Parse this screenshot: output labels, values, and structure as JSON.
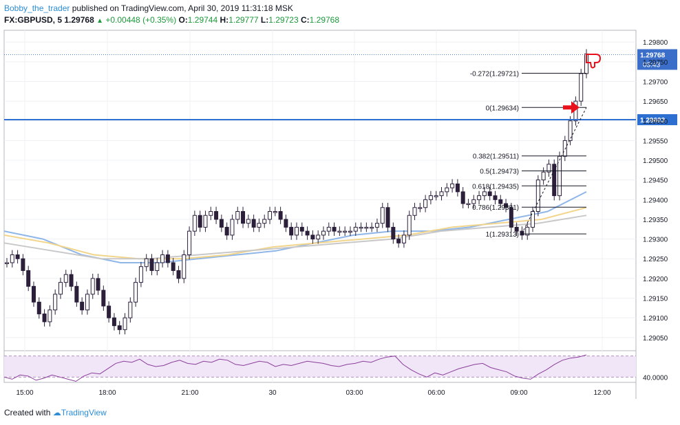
{
  "header": {
    "author": "Bobby_the_trader",
    "published": "published on TradingView.com, April 30, 2019 11:31:18 MSK",
    "symbol": "FX:GBPUSD, 5",
    "last": "1.29768",
    "change": "+0.00448 (+0.35%)",
    "o_label": "O:",
    "o": "1.29744",
    "h_label": "H:",
    "h": "1.29777",
    "l_label": "L:",
    "l": "1.29723",
    "c_label": "C:",
    "c": "1.29768"
  },
  "footer": {
    "created_with": "Created with",
    "brand": "TradingView"
  },
  "colors": {
    "up": "#1a9a3a",
    "candle": "#2b1f3a",
    "ma_fast": "#8fb6e8",
    "ma_mid": "#f2d58a",
    "ma_slow": "#c8c8c8",
    "level_line": "#2c6fd1",
    "rsi": "#8a3e9a",
    "rsi_band": "#f1e6f7",
    "marker_arrow": "#e8101a",
    "thumbs_icon": "#e8101a"
  },
  "chart_data": {
    "type": "candlestick",
    "price_axis": {
      "ticks": [
        "1.29800",
        "1.29750",
        "1.29700",
        "1.29650",
        "1.29600",
        "1.29550",
        "1.29500",
        "1.29450",
        "1.29400",
        "1.29350",
        "1.29300",
        "1.29250",
        "1.29200",
        "1.29150",
        "1.29100",
        "1.29050"
      ],
      "ylim": [
        1.2902,
        1.2983
      ]
    },
    "time_axis": {
      "ticks": [
        "15:00",
        "18:00",
        "21:00",
        "30",
        "03:00",
        "06:00",
        "09:00",
        "12:00"
      ]
    },
    "current_price": {
      "value": 1.29768,
      "label": "1.29768",
      "countdown": "03:43"
    },
    "horizontal_level": {
      "value": 1.29603,
      "label": "1.29603"
    },
    "fibonacci": [
      {
        "label": "-0.272(1.29721)",
        "value": 1.29721
      },
      {
        "label": "0(1.29634)",
        "value": 1.29634
      },
      {
        "label": "0.382(1.29511)",
        "value": 1.29511
      },
      {
        "label": "0.5(1.29473)",
        "value": 1.29473
      },
      {
        "label": "0.618(1.29435)",
        "value": 1.29435
      },
      {
        "label": "0.786(1.29381)",
        "value": 1.29381
      },
      {
        "label": "1(1.29313)",
        "value": 1.29313
      }
    ],
    "series": [
      {
        "name": "price",
        "values": [
          1.2924,
          1.2926,
          1.2925,
          1.2922,
          1.2918,
          1.2914,
          1.2911,
          1.2909,
          1.2912,
          1.2916,
          1.2919,
          1.2921,
          1.2918,
          1.2914,
          1.2912,
          1.2916,
          1.292,
          1.2917,
          1.2913,
          1.291,
          1.2908,
          1.2907,
          1.291,
          1.2914,
          1.2919,
          1.2923,
          1.2925,
          1.2922,
          1.2924,
          1.2926,
          1.2924,
          1.2922,
          1.292,
          1.2926,
          1.2932,
          1.2936,
          1.2933,
          1.2936,
          1.2937,
          1.2935,
          1.2933,
          1.2931,
          1.2935,
          1.2937,
          1.2934,
          1.2935,
          1.2933,
          1.2934,
          1.2935,
          1.2937,
          1.2937,
          1.2935,
          1.2933,
          1.2931,
          1.2933,
          1.2932,
          1.2931,
          1.293,
          1.2931,
          1.2932,
          1.2933,
          1.2932,
          1.2932,
          1.2932,
          1.2932,
          1.2933,
          1.2933,
          1.2933,
          1.2933,
          1.2934,
          1.2938,
          1.2933,
          1.293,
          1.2929,
          1.2931,
          1.2936,
          1.2938,
          1.2938,
          1.294,
          1.2941,
          1.2941,
          1.2942,
          1.2943,
          1.2944,
          1.2942,
          1.2939,
          1.2939,
          1.294,
          1.2941,
          1.2942,
          1.2941,
          1.294,
          1.2939,
          1.2938,
          1.2933,
          1.2932,
          1.2931,
          1.2933,
          1.2937,
          1.2945,
          1.2947,
          1.2949,
          1.2941,
          1.2951,
          1.2955,
          1.296,
          1.2965,
          1.2972,
          1.2977
        ]
      },
      {
        "name": "ma_fast",
        "values": [
          1.2932,
          1.293,
          1.2926,
          1.2924,
          1.2924,
          1.2925,
          1.2926,
          1.2927,
          1.2929,
          1.2931,
          1.2932,
          1.2932,
          1.2933,
          1.2935,
          1.2937,
          1.2942
        ]
      },
      {
        "name": "ma_mid",
        "values": [
          1.2931,
          1.2929,
          1.2926,
          1.2925,
          1.2925,
          1.2926,
          1.2928,
          1.2929,
          1.293,
          1.2931,
          1.2933,
          1.2934,
          1.2935,
          1.2938
        ]
      },
      {
        "name": "ma_slow",
        "values": [
          1.2929,
          1.2927,
          1.2925,
          1.2925,
          1.2926,
          1.2927,
          1.2928,
          1.2929,
          1.293,
          1.2932,
          1.2933,
          1.2934,
          1.2936
        ]
      }
    ],
    "rsi": {
      "label": "40.0000",
      "values": [
        40,
        38,
        42,
        41,
        37,
        39,
        42,
        40,
        38,
        36,
        41,
        44,
        43,
        48,
        53,
        55,
        54,
        57,
        52,
        50,
        51,
        54,
        56,
        53,
        52,
        55,
        54,
        57,
        56,
        52,
        51,
        53,
        55,
        54,
        50,
        52,
        51,
        53,
        55,
        54,
        53,
        51,
        50,
        52,
        53,
        55,
        54,
        57,
        59,
        60,
        52,
        47,
        43,
        40,
        44,
        42,
        45,
        48,
        50,
        52,
        53,
        49,
        47,
        45,
        41,
        39,
        38,
        43,
        47,
        52,
        56,
        58,
        59,
        61
      ]
    }
  }
}
